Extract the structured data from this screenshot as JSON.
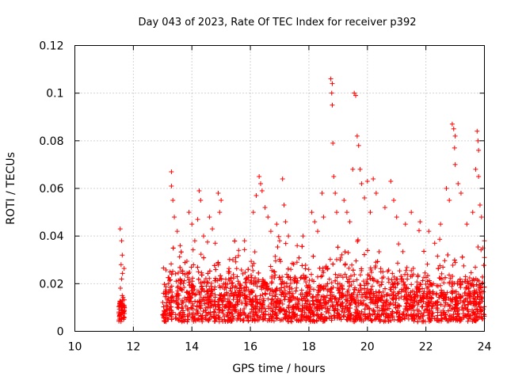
{
  "chart_data": {
    "type": "scatter",
    "title": "Day 043 of 2023, Rate Of TEC Index for receiver p392",
    "xlabel": "GPS time / hours",
    "ylabel": "ROTI / TECUs",
    "xlim": [
      10,
      24
    ],
    "ylim": [
      0,
      0.12
    ],
    "xticks": [
      "10",
      "12",
      "14",
      "16",
      "18",
      "20",
      "22",
      "24"
    ],
    "yticks": [
      "0",
      "0.02",
      "0.04",
      "0.06",
      "0.08",
      "0.1",
      "0.12"
    ],
    "grid": true,
    "marker": "+",
    "color": "#ff0000",
    "series": [
      {
        "name": "ROTI",
        "clusters": [
          {
            "t0": 11.5,
            "t1": 11.7,
            "n": 60,
            "base": 0.008,
            "spread": 0.004
          },
          {
            "t0": 13.0,
            "t1": 24.0,
            "n": 2800,
            "base": 0.012,
            "spread": 0.008
          }
        ],
        "spike_points": [
          [
            11.55,
            0.043
          ],
          [
            11.6,
            0.038
          ],
          [
            11.62,
            0.032
          ],
          [
            11.58,
            0.028
          ],
          [
            11.6,
            0.022
          ],
          [
            11.62,
            0.015
          ],
          [
            13.3,
            0.067
          ],
          [
            13.3,
            0.061
          ],
          [
            13.35,
            0.055
          ],
          [
            13.4,
            0.048
          ],
          [
            13.5,
            0.042
          ],
          [
            13.6,
            0.036
          ],
          [
            13.9,
            0.05
          ],
          [
            14.0,
            0.045
          ],
          [
            14.1,
            0.038
          ],
          [
            14.25,
            0.059
          ],
          [
            14.3,
            0.055
          ],
          [
            14.2,
            0.047
          ],
          [
            14.4,
            0.04
          ],
          [
            14.6,
            0.048
          ],
          [
            14.7,
            0.043
          ],
          [
            14.8,
            0.037
          ],
          [
            14.9,
            0.058
          ],
          [
            15.0,
            0.055
          ],
          [
            14.95,
            0.05
          ],
          [
            15.4,
            0.03
          ],
          [
            15.6,
            0.034
          ],
          [
            15.8,
            0.038
          ],
          [
            16.1,
            0.05
          ],
          [
            16.2,
            0.057
          ],
          [
            16.3,
            0.065
          ],
          [
            16.35,
            0.062
          ],
          [
            16.4,
            0.059
          ],
          [
            16.5,
            0.052
          ],
          [
            16.6,
            0.048
          ],
          [
            16.7,
            0.042
          ],
          [
            16.9,
            0.045
          ],
          [
            17.0,
            0.038
          ],
          [
            17.1,
            0.064
          ],
          [
            17.15,
            0.053
          ],
          [
            17.2,
            0.046
          ],
          [
            17.3,
            0.04
          ],
          [
            17.6,
            0.036
          ],
          [
            17.8,
            0.04
          ],
          [
            18.1,
            0.05
          ],
          [
            18.2,
            0.046
          ],
          [
            18.3,
            0.042
          ],
          [
            18.45,
            0.058
          ],
          [
            18.5,
            0.048
          ],
          [
            18.75,
            0.106
          ],
          [
            18.8,
            0.104
          ],
          [
            18.78,
            0.1
          ],
          [
            18.8,
            0.095
          ],
          [
            18.82,
            0.079
          ],
          [
            18.85,
            0.065
          ],
          [
            18.9,
            0.058
          ],
          [
            18.95,
            0.05
          ],
          [
            19.2,
            0.055
          ],
          [
            19.3,
            0.05
          ],
          [
            19.4,
            0.046
          ],
          [
            19.5,
            0.068
          ],
          [
            19.55,
            0.1
          ],
          [
            19.6,
            0.099
          ],
          [
            19.65,
            0.082
          ],
          [
            19.7,
            0.078
          ],
          [
            19.75,
            0.068
          ],
          [
            19.8,
            0.062
          ],
          [
            19.9,
            0.056
          ],
          [
            20.0,
            0.063
          ],
          [
            20.1,
            0.05
          ],
          [
            20.2,
            0.064
          ],
          [
            20.3,
            0.058
          ],
          [
            20.6,
            0.052
          ],
          [
            20.8,
            0.063
          ],
          [
            20.9,
            0.055
          ],
          [
            21.0,
            0.048
          ],
          [
            21.3,
            0.045
          ],
          [
            21.5,
            0.05
          ],
          [
            21.8,
            0.046
          ],
          [
            22.1,
            0.042
          ],
          [
            22.3,
            0.037
          ],
          [
            22.5,
            0.045
          ],
          [
            22.7,
            0.06
          ],
          [
            22.8,
            0.055
          ],
          [
            22.9,
            0.087
          ],
          [
            22.95,
            0.085
          ],
          [
            23.0,
            0.082
          ],
          [
            22.98,
            0.077
          ],
          [
            23.0,
            0.07
          ],
          [
            23.1,
            0.062
          ],
          [
            23.2,
            0.058
          ],
          [
            23.4,
            0.045
          ],
          [
            23.6,
            0.05
          ],
          [
            23.7,
            0.068
          ],
          [
            23.75,
            0.084
          ],
          [
            23.78,
            0.08
          ],
          [
            23.8,
            0.076
          ],
          [
            23.8,
            0.065
          ],
          [
            23.85,
            0.053
          ],
          [
            23.9,
            0.048
          ],
          [
            24.0,
            0.038
          ],
          [
            23.95,
            0.035
          ],
          [
            24.0,
            0.031
          ]
        ]
      }
    ]
  }
}
